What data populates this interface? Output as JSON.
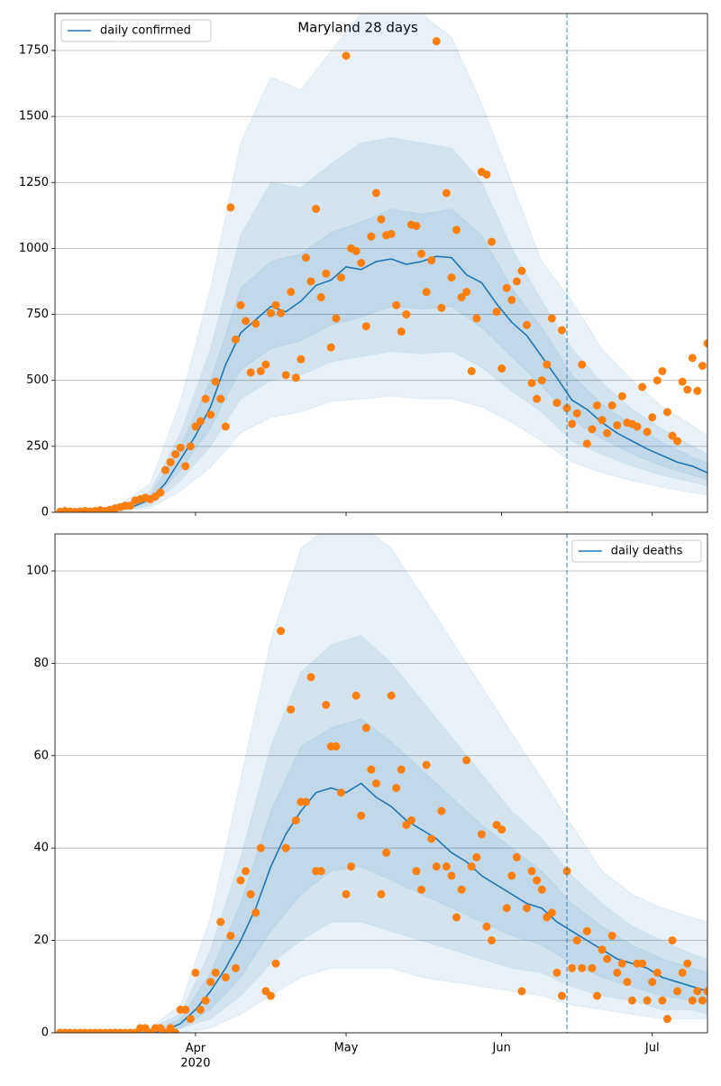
{
  "chart_data": [
    {
      "type": "line",
      "title": "Maryland 28 days",
      "xlim": [
        64,
        194
      ],
      "xticks": [
        92,
        122,
        153,
        183
      ],
      "ylim": [
        0,
        1890
      ],
      "yticks": [
        0,
        250,
        500,
        750,
        1000,
        1250,
        1500,
        1750
      ],
      "grid": true,
      "legend_loc": "upper left",
      "series": [
        {
          "name": "daily confirmed",
          "color": "#1f77b4",
          "x": [
            65,
            68,
            71,
            74,
            77,
            80,
            83,
            86,
            89,
            92,
            95,
            98,
            101,
            104,
            107,
            110,
            113,
            116,
            119,
            122,
            125,
            128,
            131,
            134,
            137,
            140,
            143,
            146,
            149,
            152,
            155,
            158,
            161,
            164,
            167,
            170,
            173,
            176,
            179,
            182,
            185,
            188,
            191,
            194
          ],
          "values": [
            2,
            3,
            4,
            6,
            12,
            25,
            50,
            110,
            200,
            290,
            400,
            560,
            680,
            730,
            780,
            760,
            800,
            860,
            880,
            930,
            920,
            950,
            960,
            940,
            950,
            970,
            965,
            900,
            870,
            790,
            720,
            670,
            590,
            510,
            425,
            390,
            340,
            300,
            270,
            240,
            215,
            190,
            175,
            150
          ]
        }
      ],
      "bands": {
        "color": "#1f77b4",
        "x": [
          65,
          71,
          77,
          83,
          89,
          95,
          101,
          107,
          113,
          119,
          125,
          131,
          137,
          143,
          149,
          155,
          161,
          167,
          173,
          179,
          185,
          191,
          194
        ],
        "levels": [
          {
            "lower": [
              0,
              1,
              3,
              15,
              80,
              170,
              300,
              360,
              380,
              420,
              430,
              440,
              430,
              430,
              400,
              340,
              270,
              190,
              150,
              120,
              95,
              75,
              65
            ],
            "upper": [
              5,
              10,
              30,
              110,
              420,
              850,
              1400,
              1650,
              1600,
              1750,
              1890,
              1890,
              1890,
              1800,
              1550,
              1250,
              950,
              800,
              620,
              500,
              400,
              330,
              290
            ]
          },
          {
            "lower": [
              1,
              2,
              6,
              25,
              120,
              250,
              430,
              500,
              520,
              570,
              590,
              610,
              600,
              610,
              550,
              460,
              380,
              270,
              220,
              175,
              140,
              115,
              100
            ],
            "upper": [
              4,
              7,
              20,
              80,
              300,
              620,
              1050,
              1250,
              1230,
              1320,
              1400,
              1420,
              1400,
              1380,
              1250,
              1000,
              800,
              620,
              490,
              390,
              315,
              250,
              220
            ]
          },
          {
            "lower": [
              1,
              3,
              9,
              38,
              160,
              320,
              540,
              620,
              650,
              710,
              740,
              780,
              770,
              780,
              700,
              590,
              480,
              350,
              280,
              220,
              175,
              140,
              125
            ],
            "upper": [
              3,
              5,
              15,
              65,
              250,
              500,
              850,
              950,
              980,
              1060,
              1100,
              1150,
              1130,
              1150,
              1050,
              850,
              700,
              520,
              410,
              330,
              265,
              210,
              185
            ]
          }
        ]
      },
      "observations": {
        "color": "#ff7f0e",
        "x": [
          65,
          66,
          67,
          68,
          69,
          70,
          71,
          72,
          73,
          74,
          75,
          76,
          77,
          78,
          79,
          80,
          81,
          82,
          83,
          84,
          85,
          86,
          87,
          88,
          89,
          90,
          91,
          92,
          93,
          94,
          95,
          96,
          97,
          98,
          99,
          100,
          101,
          102,
          103,
          104,
          105,
          106,
          107,
          108,
          109,
          110,
          111,
          112,
          113,
          114,
          115,
          116,
          117,
          118,
          119,
          120,
          121,
          122,
          123,
          124,
          125,
          126,
          127,
          128,
          129,
          130,
          131,
          132,
          133,
          134,
          135,
          136,
          137,
          138,
          139,
          140,
          141,
          142,
          143,
          144,
          145,
          146,
          147,
          148,
          149,
          150,
          151,
          152,
          153,
          154,
          155,
          156,
          157,
          158,
          159,
          160,
          161,
          162,
          163,
          164,
          165,
          166,
          167,
          168,
          169,
          170,
          171,
          172,
          173,
          174,
          175,
          176,
          177,
          178,
          179,
          180,
          181,
          182,
          183,
          184,
          185,
          186,
          187,
          188,
          189,
          190,
          191,
          192,
          193,
          194
        ],
        "values": [
          2,
          5,
          3,
          2,
          3,
          5,
          3,
          5,
          8,
          5,
          10,
          15,
          20,
          25,
          25,
          45,
          50,
          55,
          50,
          60,
          75,
          160,
          190,
          220,
          245,
          175,
          250,
          325,
          345,
          430,
          370,
          495,
          430,
          325,
          1155,
          655,
          785,
          725,
          530,
          715,
          535,
          560,
          755,
          785,
          755,
          520,
          835,
          510,
          580,
          965,
          875,
          1150,
          815,
          905,
          625,
          735,
          890,
          1730,
          1000,
          990,
          945,
          705,
          1045,
          1210,
          1110,
          1050,
          1055,
          785,
          685,
          750,
          1090,
          1085,
          980,
          835,
          955,
          1785,
          775,
          1210,
          890,
          1070,
          815,
          835,
          535,
          735,
          1290,
          1280,
          1025,
          760,
          545,
          850,
          805,
          875,
          915,
          710,
          490,
          430,
          500,
          560,
          735,
          415,
          690,
          395,
          335,
          375,
          560,
          260,
          315,
          405,
          350,
          300,
          405,
          330,
          440,
          340,
          335,
          325,
          475,
          305,
          360,
          500,
          535,
          380,
          290,
          270,
          495,
          465,
          585,
          460,
          555,
          640
        ]
      },
      "vline": {
        "x": 166,
        "color": "#1f77b4",
        "dashed": true
      }
    },
    {
      "type": "line",
      "xlim": [
        64,
        194
      ],
      "xticks": [
        {
          "value": 92,
          "label": "Apr\n2020"
        },
        {
          "value": 122,
          "label": "May"
        },
        {
          "value": 153,
          "label": "Jun"
        },
        {
          "value": 183,
          "label": "Jul"
        }
      ],
      "ylim": [
        0,
        108
      ],
      "yticks": [
        0,
        20,
        40,
        60,
        80,
        100
      ],
      "grid": true,
      "legend_loc": "upper right",
      "series": [
        {
          "name": "daily deaths",
          "color": "#1f77b4",
          "x": [
            65,
            68,
            71,
            74,
            77,
            80,
            83,
            86,
            89,
            92,
            95,
            98,
            101,
            104,
            107,
            110,
            113,
            116,
            119,
            122,
            125,
            128,
            131,
            134,
            137,
            140,
            143,
            146,
            149,
            152,
            155,
            158,
            161,
            164,
            167,
            170,
            173,
            176,
            179,
            182,
            185,
            188,
            191,
            194
          ],
          "values": [
            0,
            0,
            0,
            0,
            0,
            0,
            0,
            0.5,
            2,
            5,
            9,
            14,
            20,
            27,
            36,
            43,
            48,
            52,
            53,
            52,
            54,
            51,
            49,
            46,
            44,
            42,
            39,
            37,
            34,
            32,
            30,
            28,
            27,
            24,
            22,
            20,
            18,
            16,
            15,
            14,
            12,
            11,
            10,
            9
          ]
        }
      ],
      "bands": {
        "color": "#1f77b4",
        "x": [
          65,
          71,
          77,
          83,
          89,
          95,
          101,
          107,
          113,
          119,
          125,
          131,
          137,
          143,
          149,
          155,
          161,
          167,
          173,
          179,
          185,
          191,
          194
        ],
        "levels": [
          {
            "lower": [
              0,
              0,
              0,
              0,
              0,
              1,
              4,
              8,
              12,
              14,
              14,
              14,
              12,
              11,
              10,
              9,
              8,
              6,
              5,
              4,
              3,
              3,
              3
            ],
            "upper": [
              0,
              0,
              0,
              1,
              6,
              25,
              55,
              85,
              105,
              110,
              110,
              105,
              95,
              85,
              75,
              65,
              55,
              45,
              35,
              30,
              27,
              25,
              24
            ]
          },
          {
            "lower": [
              0,
              0,
              0,
              0,
              1,
              3,
              8,
              15,
              20,
              24,
              24,
              22,
              20,
              18,
              16,
              14,
              13,
              10,
              8,
              7,
              5,
              5,
              4
            ],
            "upper": [
              0,
              0,
              0,
              1,
              4,
              18,
              38,
              62,
              78,
              84,
              86,
              80,
              72,
              64,
              56,
              48,
              42,
              34,
              28,
              23,
              20,
              17,
              16
            ]
          },
          {
            "lower": [
              0,
              0,
              0,
              0,
              1,
              5,
              12,
              22,
              30,
              35,
              36,
              33,
              30,
              27,
              24,
              21,
              19,
              15,
              12,
              10,
              8,
              7,
              6
            ],
            "upper": [
              0,
              0,
              0,
              0,
              3,
              13,
              28,
              48,
              62,
              66,
              68,
              63,
              57,
              51,
              45,
              40,
              35,
              28,
              23,
              19,
              16,
              14,
              13
            ]
          }
        ]
      },
      "observations": {
        "color": "#ff7f0e",
        "x": [
          65,
          66,
          67,
          68,
          69,
          70,
          71,
          72,
          73,
          74,
          75,
          76,
          77,
          78,
          79,
          80,
          81,
          82,
          83,
          84,
          85,
          86,
          87,
          88,
          89,
          90,
          91,
          92,
          93,
          94,
          95,
          96,
          97,
          98,
          99,
          100,
          101,
          102,
          103,
          104,
          105,
          106,
          107,
          108,
          109,
          110,
          111,
          112,
          113,
          114,
          115,
          116,
          117,
          118,
          119,
          120,
          121,
          122,
          123,
          124,
          125,
          126,
          127,
          128,
          129,
          130,
          131,
          132,
          133,
          134,
          135,
          136,
          137,
          138,
          139,
          140,
          141,
          142,
          143,
          144,
          145,
          146,
          147,
          148,
          149,
          150,
          151,
          152,
          153,
          154,
          155,
          156,
          157,
          158,
          159,
          160,
          161,
          162,
          163,
          164,
          165,
          166,
          167,
          168,
          169,
          170,
          171,
          172,
          173,
          174,
          175,
          176,
          177,
          178,
          179,
          180,
          181,
          182,
          183,
          184,
          185,
          186,
          187,
          188,
          189,
          190,
          191,
          192,
          193,
          194
        ],
        "values": [
          0,
          0,
          0,
          0,
          0,
          0,
          0,
          0,
          0,
          0,
          0,
          0,
          0,
          0,
          0,
          0,
          1,
          1,
          0,
          1,
          1,
          0,
          1,
          0,
          5,
          5,
          3,
          13,
          5,
          7,
          11,
          13,
          24,
          12,
          21,
          14,
          33,
          35,
          30,
          26,
          40,
          9,
          8,
          15,
          87,
          40,
          70,
          46,
          50,
          50,
          77,
          35,
          35,
          71,
          62,
          62,
          52,
          30,
          36,
          73,
          47,
          66,
          57,
          54,
          30,
          39,
          73,
          53,
          57,
          45,
          46,
          35,
          31,
          58,
          42,
          36,
          48,
          36,
          34,
          25,
          31,
          59,
          36,
          38,
          43,
          23,
          20,
          45,
          44,
          27,
          34,
          38,
          9,
          27,
          35,
          33,
          31,
          25,
          26,
          13,
          8,
          35,
          14,
          20,
          14,
          22,
          14,
          8,
          18,
          16,
          21,
          13,
          15,
          11,
          7,
          15,
          15,
          7,
          11,
          13,
          7,
          3,
          20,
          9,
          13,
          15,
          7,
          9,
          7,
          9
        ]
      },
      "vline": {
        "x": 166,
        "color": "#1f77b4",
        "dashed": true
      }
    }
  ]
}
